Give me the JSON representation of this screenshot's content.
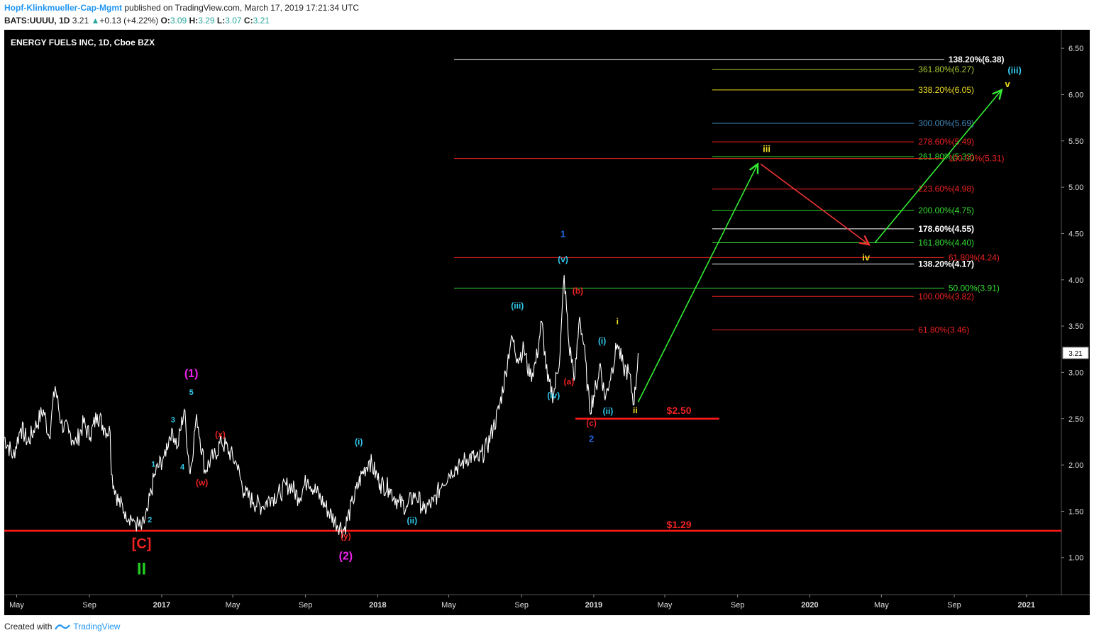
{
  "header": {
    "author": "Hopf-Klinkmueller-Cap-Mgmt",
    "published": "published on TradingView.com, March 17, 2019 17:21:34 UTC",
    "symbol": "BATS:UUUU, 1D",
    "last": "3.21",
    "change": "+0.13 (+4.22%)",
    "o_label": "O:",
    "o": "3.09",
    "h_label": "H:",
    "h": "3.29",
    "l_label": "L:",
    "l": "3.07",
    "c_label": "C:",
    "c": "3.21"
  },
  "footer": {
    "created": "Created with",
    "brand": "TradingView"
  },
  "colors": {
    "background": "#000000",
    "price": "#ffffff",
    "support": "#ff1a1a",
    "green_arrow": "#33ee33",
    "red_arrow": "#ee3333",
    "cyan": "#33ccee",
    "magenta": "#ee22ee",
    "blue": "#2266dd",
    "red_label": "#ee2222",
    "yellow": "#eedd22",
    "green_label": "#33dd33",
    "white_label": "#ffffff",
    "olive": "#aacc33",
    "steel": "#4488bb"
  },
  "chart_data": {
    "type": "line",
    "title": "ENERGY FUELS INC, 1D, Cboe BZX",
    "xlabel": "",
    "ylabel": "",
    "ylim": [
      0.6,
      6.7
    ],
    "x_range": [
      "2016-04-10",
      "2021-03-01"
    ],
    "y_ticks": [
      "6.50",
      "6.00",
      "5.50",
      "5.00",
      "4.50",
      "4.00",
      "3.50",
      "3.00",
      "2.50",
      "2.00",
      "1.50",
      "1.00"
    ],
    "x_ticks": [
      {
        "date": "2016-05-01",
        "label": "May",
        "bold": false
      },
      {
        "date": "2016-09-01",
        "label": "Sep",
        "bold": false
      },
      {
        "date": "2017-01-01",
        "label": "2017",
        "bold": true
      },
      {
        "date": "2017-05-01",
        "label": "May",
        "bold": false
      },
      {
        "date": "2017-09-01",
        "label": "Sep",
        "bold": false
      },
      {
        "date": "2018-01-01",
        "label": "2018",
        "bold": true
      },
      {
        "date": "2018-05-01",
        "label": "May",
        "bold": false
      },
      {
        "date": "2018-09-01",
        "label": "Sep",
        "bold": false
      },
      {
        "date": "2019-01-01",
        "label": "2019",
        "bold": true
      },
      {
        "date": "2019-05-01",
        "label": "May",
        "bold": false
      },
      {
        "date": "2019-09-01",
        "label": "Sep",
        "bold": false
      },
      {
        "date": "2020-01-01",
        "label": "2020",
        "bold": true
      },
      {
        "date": "2020-05-01",
        "label": "May",
        "bold": false
      },
      {
        "date": "2020-09-01",
        "label": "Sep",
        "bold": false
      },
      {
        "date": "2021-01-01",
        "label": "2021",
        "bold": true
      }
    ],
    "last_price_tag": "3.21",
    "grid": false,
    "series": [
      {
        "points": [
          [
            "2016-04-10",
            2.3
          ],
          [
            "2016-04-25",
            2.1
          ],
          [
            "2016-05-08",
            2.4
          ],
          [
            "2016-05-20",
            2.25
          ],
          [
            "2016-06-01",
            2.4
          ],
          [
            "2016-06-15",
            2.6
          ],
          [
            "2016-06-25",
            2.3
          ],
          [
            "2016-07-05",
            2.85
          ],
          [
            "2016-07-15",
            2.45
          ],
          [
            "2016-07-28",
            2.35
          ],
          [
            "2016-08-10",
            2.25
          ],
          [
            "2016-08-22",
            2.45
          ],
          [
            "2016-09-02",
            2.3
          ],
          [
            "2016-09-14",
            2.55
          ],
          [
            "2016-09-26",
            2.4
          ],
          [
            "2016-10-06",
            2.35
          ],
          [
            "2016-10-08",
            1.9
          ],
          [
            "2016-10-20",
            1.6
          ],
          [
            "2016-11-01",
            1.5
          ],
          [
            "2016-11-15",
            1.4
          ],
          [
            "2016-11-28",
            1.3
          ],
          [
            "2016-12-08",
            1.5
          ],
          [
            "2016-12-20",
            1.9
          ],
          [
            "2017-01-05",
            2.1
          ],
          [
            "2017-01-18",
            2.4
          ],
          [
            "2017-01-28",
            2.2
          ],
          [
            "2017-02-08",
            2.6
          ],
          [
            "2017-02-18",
            1.9
          ],
          [
            "2017-03-01",
            2.55
          ],
          [
            "2017-03-15",
            1.95
          ],
          [
            "2017-03-30",
            2.1
          ],
          [
            "2017-04-12",
            2.25
          ],
          [
            "2017-04-25",
            2.15
          ],
          [
            "2017-05-08",
            2.0
          ],
          [
            "2017-05-20",
            1.7
          ],
          [
            "2017-06-05",
            1.6
          ],
          [
            "2017-06-20",
            1.55
          ],
          [
            "2017-07-05",
            1.65
          ],
          [
            "2017-07-20",
            1.7
          ],
          [
            "2017-08-05",
            1.8
          ],
          [
            "2017-08-20",
            1.65
          ],
          [
            "2017-09-05",
            1.85
          ],
          [
            "2017-09-20",
            1.7
          ],
          [
            "2017-10-05",
            1.55
          ],
          [
            "2017-10-20",
            1.4
          ],
          [
            "2017-11-05",
            1.3
          ],
          [
            "2017-11-20",
            1.6
          ],
          [
            "2017-12-05",
            1.9
          ],
          [
            "2017-12-18",
            2.05
          ],
          [
            "2018-01-05",
            1.8
          ],
          [
            "2018-01-20",
            1.75
          ],
          [
            "2018-02-05",
            1.6
          ],
          [
            "2018-02-20",
            1.55
          ],
          [
            "2018-03-05",
            1.7
          ],
          [
            "2018-03-20",
            1.52
          ],
          [
            "2018-04-05",
            1.6
          ],
          [
            "2018-04-20",
            1.8
          ],
          [
            "2018-05-05",
            1.95
          ],
          [
            "2018-05-20",
            2.0
          ],
          [
            "2018-06-05",
            2.1
          ],
          [
            "2018-06-20",
            2.05
          ],
          [
            "2018-07-05",
            2.2
          ],
          [
            "2018-07-15",
            2.4
          ],
          [
            "2018-07-25",
            2.6
          ],
          [
            "2018-08-05",
            3.0
          ],
          [
            "2018-08-15",
            3.4
          ],
          [
            "2018-08-25",
            3.15
          ],
          [
            "2018-09-05",
            3.25
          ],
          [
            "2018-09-15",
            2.95
          ],
          [
            "2018-09-25",
            3.1
          ],
          [
            "2018-10-05",
            3.55
          ],
          [
            "2018-10-15",
            2.9
          ],
          [
            "2018-10-25",
            2.75
          ],
          [
            "2018-11-05",
            3.2
          ],
          [
            "2018-11-12",
            4.05
          ],
          [
            "2018-11-20",
            3.3
          ],
          [
            "2018-11-30",
            2.95
          ],
          [
            "2018-12-08",
            3.6
          ],
          [
            "2018-12-15",
            3.3
          ],
          [
            "2018-12-25",
            2.6
          ],
          [
            "2019-01-05",
            2.85
          ],
          [
            "2019-01-12",
            3.1
          ],
          [
            "2019-01-20",
            2.7
          ],
          [
            "2019-02-01",
            3.05
          ],
          [
            "2019-02-10",
            3.3
          ],
          [
            "2019-02-20",
            3.05
          ],
          [
            "2019-03-01",
            3.0
          ],
          [
            "2019-03-10",
            2.65
          ],
          [
            "2019-03-17",
            3.21
          ]
        ]
      }
    ],
    "horizontal_levels": [
      {
        "label": "$2.50",
        "value": 2.5,
        "start": "2018-12-01",
        "end": "2019-08-01",
        "style": "support"
      },
      {
        "label": "$1.29",
        "value": 1.29,
        "start": "2016-04-10",
        "end": "2021-03-01",
        "style": "support"
      }
    ],
    "fib_levels": [
      {
        "label": "138.20%(6.38)",
        "value": 6.38,
        "start": "2018-05-10",
        "end": "2020-08-15",
        "color": "#ffffff"
      },
      {
        "label": "361.80%(6.27)",
        "value": 6.27,
        "start": "2019-07-20",
        "end": "2020-06-25",
        "color": "#aacc33"
      },
      {
        "label": "338.20%(6.05)",
        "value": 6.05,
        "start": "2019-07-20",
        "end": "2020-06-25",
        "color": "#eedd22"
      },
      {
        "label": "300.00%(5.69)",
        "value": 5.69,
        "start": "2019-07-20",
        "end": "2020-06-25",
        "color": "#4488bb"
      },
      {
        "label": "278.60%(5.49)",
        "value": 5.49,
        "start": "2019-07-20",
        "end": "2020-06-25",
        "color": "#ee2222"
      },
      {
        "label": "261.80%(5.33)",
        "value": 5.33,
        "start": "2019-07-20",
        "end": "2020-06-25",
        "color": "#33dd33"
      },
      {
        "label": "100.00%(5.31)",
        "value": 5.31,
        "start": "2018-05-10",
        "end": "2020-08-15",
        "color": "#ee2222"
      },
      {
        "label": "223.60%(4.98)",
        "value": 4.98,
        "start": "2019-07-20",
        "end": "2020-06-25",
        "color": "#ee2222"
      },
      {
        "label": "200.00%(4.75)",
        "value": 4.75,
        "start": "2019-07-20",
        "end": "2020-06-25",
        "color": "#33dd33"
      },
      {
        "label": "178.60%(4.55)",
        "value": 4.55,
        "start": "2019-07-20",
        "end": "2020-06-25",
        "color": "#ffffff"
      },
      {
        "label": "161.80%(4.40)",
        "value": 4.4,
        "start": "2019-07-20",
        "end": "2020-06-25",
        "color": "#33dd33"
      },
      {
        "label": "61.80%(4.24)",
        "value": 4.24,
        "start": "2018-05-10",
        "end": "2020-08-15",
        "color": "#ee2222"
      },
      {
        "label": "138.20%(4.17)",
        "value": 4.17,
        "start": "2019-07-20",
        "end": "2020-06-25",
        "color": "#ffffff"
      },
      {
        "label": "50.00%(3.91)",
        "value": 3.91,
        "start": "2018-05-10",
        "end": "2020-08-15",
        "color": "#33dd33"
      },
      {
        "label": "100.00%(3.82)",
        "value": 3.82,
        "start": "2019-07-20",
        "end": "2020-06-25",
        "color": "#ee2222"
      },
      {
        "label": "61.80%(3.46)",
        "value": 3.46,
        "start": "2019-07-20",
        "end": "2020-06-25",
        "color": "#ee2222"
      }
    ],
    "arrows": [
      {
        "from": [
          "2019-03-17",
          2.68
        ],
        "to": [
          "2019-10-05",
          5.25
        ],
        "color": "#33ee33"
      },
      {
        "from": [
          "2019-10-10",
          5.25
        ],
        "to": [
          "2020-04-10",
          4.38
        ],
        "color": "#ee3333"
      },
      {
        "from": [
          "2020-04-20",
          4.4
        ],
        "to": [
          "2020-11-20",
          6.05
        ],
        "color": "#33ee33"
      }
    ],
    "annotations": [
      {
        "text": "(1)",
        "x": "2017-02-20",
        "y": 2.95,
        "color": "#ee22ee",
        "size": 16
      },
      {
        "text": "5",
        "x": "2017-02-20",
        "y": 2.76,
        "color": "#33ccee",
        "size": 11
      },
      {
        "text": "3",
        "x": "2017-01-20",
        "y": 2.46,
        "color": "#33ccee",
        "size": 11
      },
      {
        "text": "1",
        "x": "2016-12-18",
        "y": 1.98,
        "color": "#33ccee",
        "size": 11
      },
      {
        "text": "4",
        "x": "2017-02-05",
        "y": 1.95,
        "color": "#33ccee",
        "size": 11
      },
      {
        "text": "2",
        "x": "2016-12-12",
        "y": 1.38,
        "color": "#33ccee",
        "size": 11
      },
      {
        "text": "(x)",
        "x": "2017-04-10",
        "y": 2.3,
        "color": "#ee2222",
        "size": 12
      },
      {
        "text": "(w)",
        "x": "2017-03-10",
        "y": 1.78,
        "color": "#ee2222",
        "size": 12
      },
      {
        "text": "[C]",
        "x": "2016-11-28",
        "y": 1.1,
        "color": "#ee2222",
        "size": 20
      },
      {
        "text": "II",
        "x": "2016-11-28",
        "y": 0.82,
        "color": "#22cc22",
        "size": 24
      },
      {
        "text": "(y)",
        "x": "2017-11-08",
        "y": 1.2,
        "color": "#ee2222",
        "size": 12
      },
      {
        "text": "(2)",
        "x": "2017-11-08",
        "y": 0.98,
        "color": "#ee22ee",
        "size": 16
      },
      {
        "text": "(i)",
        "x": "2017-11-30",
        "y": 2.22,
        "color": "#33ccee",
        "size": 12
      },
      {
        "text": "(ii)",
        "x": "2018-02-28",
        "y": 1.37,
        "color": "#33ccee",
        "size": 12
      },
      {
        "text": "(iii)",
        "x": "2018-08-25",
        "y": 3.69,
        "color": "#33ccee",
        "size": 12
      },
      {
        "text": "(iv)",
        "x": "2018-10-25",
        "y": 2.72,
        "color": "#33ccee",
        "size": 12
      },
      {
        "text": "1",
        "x": "2018-11-10",
        "y": 4.46,
        "color": "#2266dd",
        "size": 13
      },
      {
        "text": "(v)",
        "x": "2018-11-10",
        "y": 4.19,
        "color": "#33ccee",
        "size": 12
      },
      {
        "text": "(b)",
        "x": "2018-12-05",
        "y": 3.85,
        "color": "#ee2222",
        "size": 12
      },
      {
        "text": "(a)",
        "x": "2018-11-20",
        "y": 2.87,
        "color": "#ee2222",
        "size": 12
      },
      {
        "text": "(i)",
        "x": "2019-01-15",
        "y": 3.31,
        "color": "#33ccee",
        "size": 12
      },
      {
        "text": "i",
        "x": "2019-02-10",
        "y": 3.52,
        "color": "#eedd22",
        "size": 12
      },
      {
        "text": "(ii)",
        "x": "2019-01-25",
        "y": 2.55,
        "color": "#33ccee",
        "size": 12
      },
      {
        "text": "(c)",
        "x": "2018-12-28",
        "y": 2.42,
        "color": "#ee2222",
        "size": 12
      },
      {
        "text": "2",
        "x": "2018-12-28",
        "y": 2.25,
        "color": "#2266dd",
        "size": 13
      },
      {
        "text": "ii",
        "x": "2019-03-12",
        "y": 2.56,
        "color": "#eedd22",
        "size": 12
      },
      {
        "text": "$2.50",
        "x": "2019-05-25",
        "y": 2.55,
        "color": "#ee2222",
        "size": 14
      },
      {
        "text": "$1.29",
        "x": "2019-05-25",
        "y": 1.32,
        "color": "#ee2222",
        "size": 14
      },
      {
        "text": "iii",
        "x": "2019-10-20",
        "y": 5.38,
        "color": "#eedd22",
        "size": 13
      },
      {
        "text": "iv",
        "x": "2020-04-05",
        "y": 4.21,
        "color": "#eedd22",
        "size": 13
      },
      {
        "text": "(iii)",
        "x": "2020-12-12",
        "y": 6.23,
        "color": "#33ccee",
        "size": 13
      },
      {
        "text": "v",
        "x": "2020-11-30",
        "y": 6.08,
        "color": "#eedd22",
        "size": 13
      }
    ]
  }
}
